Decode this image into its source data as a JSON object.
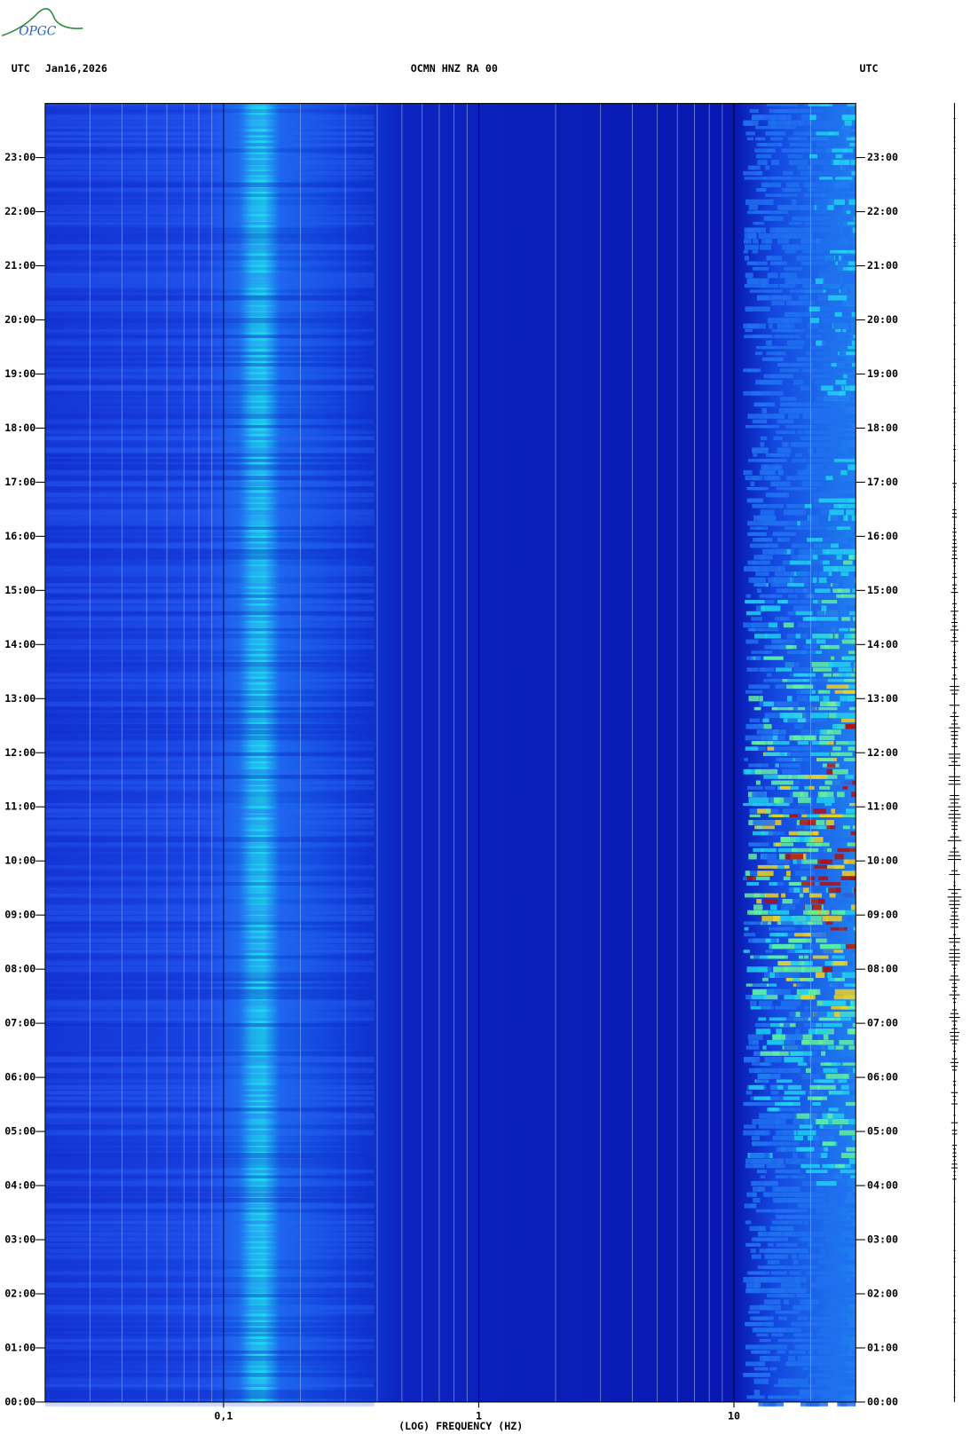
{
  "logo": "OPGC",
  "chart_data": {
    "type": "spectrogram",
    "title": "OCMN HNZ RA 00",
    "date": "Jan16,2026",
    "left_label": "UTC",
    "right_label": "UTC",
    "x_label": "(LOG) FREQUENCY (HZ)",
    "xlim": [
      0.02,
      30
    ],
    "xscale": "log",
    "xticks": [
      {
        "value": 0.1,
        "label": "0,1"
      },
      1,
      10
    ],
    "ylim": [
      0,
      24
    ],
    "yticks": [
      {
        "value": 0,
        "label": "00:00"
      },
      {
        "value": 1,
        "label": "01:00"
      },
      {
        "value": 2,
        "label": "02:00"
      },
      {
        "value": 3,
        "label": "03:00"
      },
      {
        "value": 4,
        "label": "04:00"
      },
      {
        "value": 5,
        "label": "05:00"
      },
      {
        "value": 6,
        "label": "06:00"
      },
      {
        "value": 7,
        "label": "07:00"
      },
      {
        "value": 8,
        "label": "08:00"
      },
      {
        "value": 9,
        "label": "09:00"
      },
      {
        "value": 10,
        "label": "10:00"
      },
      {
        "value": 11,
        "label": "11:00"
      },
      {
        "value": 12,
        "label": "12:00"
      },
      {
        "value": 13,
        "label": "13:00"
      },
      {
        "value": 14,
        "label": "14:00"
      },
      {
        "value": 15,
        "label": "15:00"
      },
      {
        "value": 16,
        "label": "16:00"
      },
      {
        "value": 17,
        "label": "17:00"
      },
      {
        "value": 18,
        "label": "18:00"
      },
      {
        "value": 19,
        "label": "19:00"
      },
      {
        "value": 20,
        "label": "20:00"
      },
      {
        "value": 21,
        "label": "21:00"
      },
      {
        "value": 22,
        "label": "22:00"
      },
      {
        "value": 23,
        "label": "23:00"
      }
    ],
    "grid": true
  }
}
